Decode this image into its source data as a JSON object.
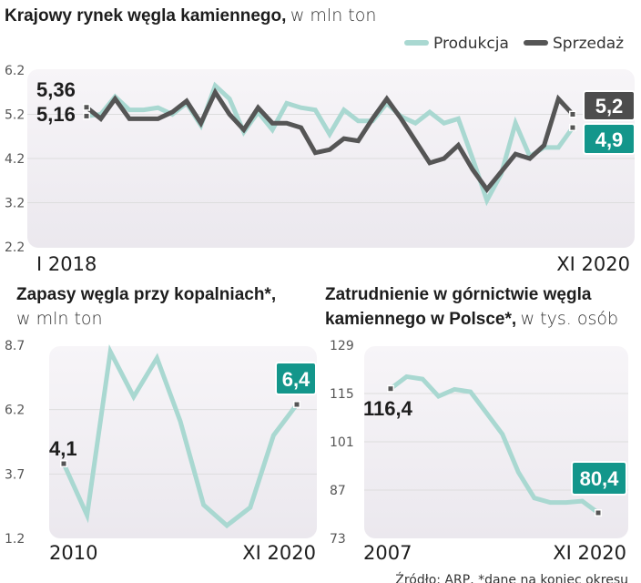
{
  "colors": {
    "produkcja": "#a9d8d1",
    "sprzedaz": "#555555",
    "teal": "#13968b",
    "dark": "#4d4d4d",
    "grid": "#dddddd"
  },
  "chart_data": [
    {
      "type": "line",
      "title": "Krajowy rynek węgla kamiennego,",
      "subtitle": "w mln ton",
      "legend": [
        "Produkcja",
        "Sprzedaż"
      ],
      "legend_position": "top-right",
      "x_start_label": "I 2018",
      "x_end_label": "XI 2020",
      "yticks": [
        "6.2",
        "5.2",
        "4.2",
        "3.2",
        "2.2"
      ],
      "ylim": [
        2.2,
        6.2
      ],
      "start_labels": {
        "sprzedaz": "5,36",
        "produkcja": "5,16"
      },
      "end_labels": {
        "sprzedaz": "5,2",
        "produkcja": "4,9"
      },
      "series": [
        {
          "name": "Produkcja",
          "values": [
            5.16,
            5.2,
            5.6,
            5.3,
            5.3,
            5.35,
            5.2,
            5.45,
            4.95,
            5.85,
            5.55,
            4.8,
            5.25,
            4.85,
            5.45,
            5.35,
            5.3,
            4.75,
            5.3,
            5.05,
            5.05,
            5.45,
            5.15,
            5.0,
            5.25,
            5.0,
            5.1,
            4.2,
            3.25,
            3.85,
            5.0,
            4.25,
            4.45,
            4.45,
            4.9
          ]
        },
        {
          "name": "Sprzedaż",
          "values": [
            5.36,
            5.1,
            5.55,
            5.1,
            5.1,
            5.1,
            5.25,
            5.5,
            5.0,
            5.7,
            5.2,
            4.85,
            5.35,
            5.0,
            5.0,
            4.9,
            4.33,
            4.4,
            4.65,
            4.6,
            5.1,
            5.55,
            5.1,
            4.6,
            4.1,
            4.2,
            4.5,
            3.95,
            3.5,
            3.9,
            4.3,
            4.2,
            4.5,
            5.55,
            5.2
          ]
        }
      ]
    },
    {
      "type": "line",
      "title": "Zapasy węgla przy kopalniach*,",
      "subtitle": "w mln ton",
      "x_start_label": "2010",
      "x_end_label": "XI 2020",
      "yticks": [
        "8.7",
        "6.2",
        "3.7",
        "1.2"
      ],
      "ylim": [
        1.2,
        8.7
      ],
      "start_label": "4,1",
      "end_label": "6,4",
      "values": [
        4.1,
        2.1,
        8.45,
        6.7,
        8.2,
        5.75,
        2.5,
        1.7,
        2.4,
        5.2,
        6.4
      ]
    },
    {
      "type": "line",
      "title_bold_1": "Zatrudnienie w górnictwie węgla",
      "title_bold_2": "kamiennego w Polsce*,",
      "subtitle": "w tys. osób",
      "x_start_label": "2007",
      "x_end_label": "XI 2020",
      "yticks": [
        "129",
        "115",
        "101",
        "87",
        "73"
      ],
      "ylim": [
        73,
        129
      ],
      "start_label": "116,4",
      "end_label": "80,4",
      "values": [
        116.4,
        119.9,
        119.2,
        114.2,
        116.2,
        115.5,
        109.4,
        103.2,
        92.2,
        84.7,
        83.4,
        83.4,
        83.8,
        80.4
      ]
    }
  ],
  "footer": "Źródło: ARP, *dane na koniec okresu"
}
